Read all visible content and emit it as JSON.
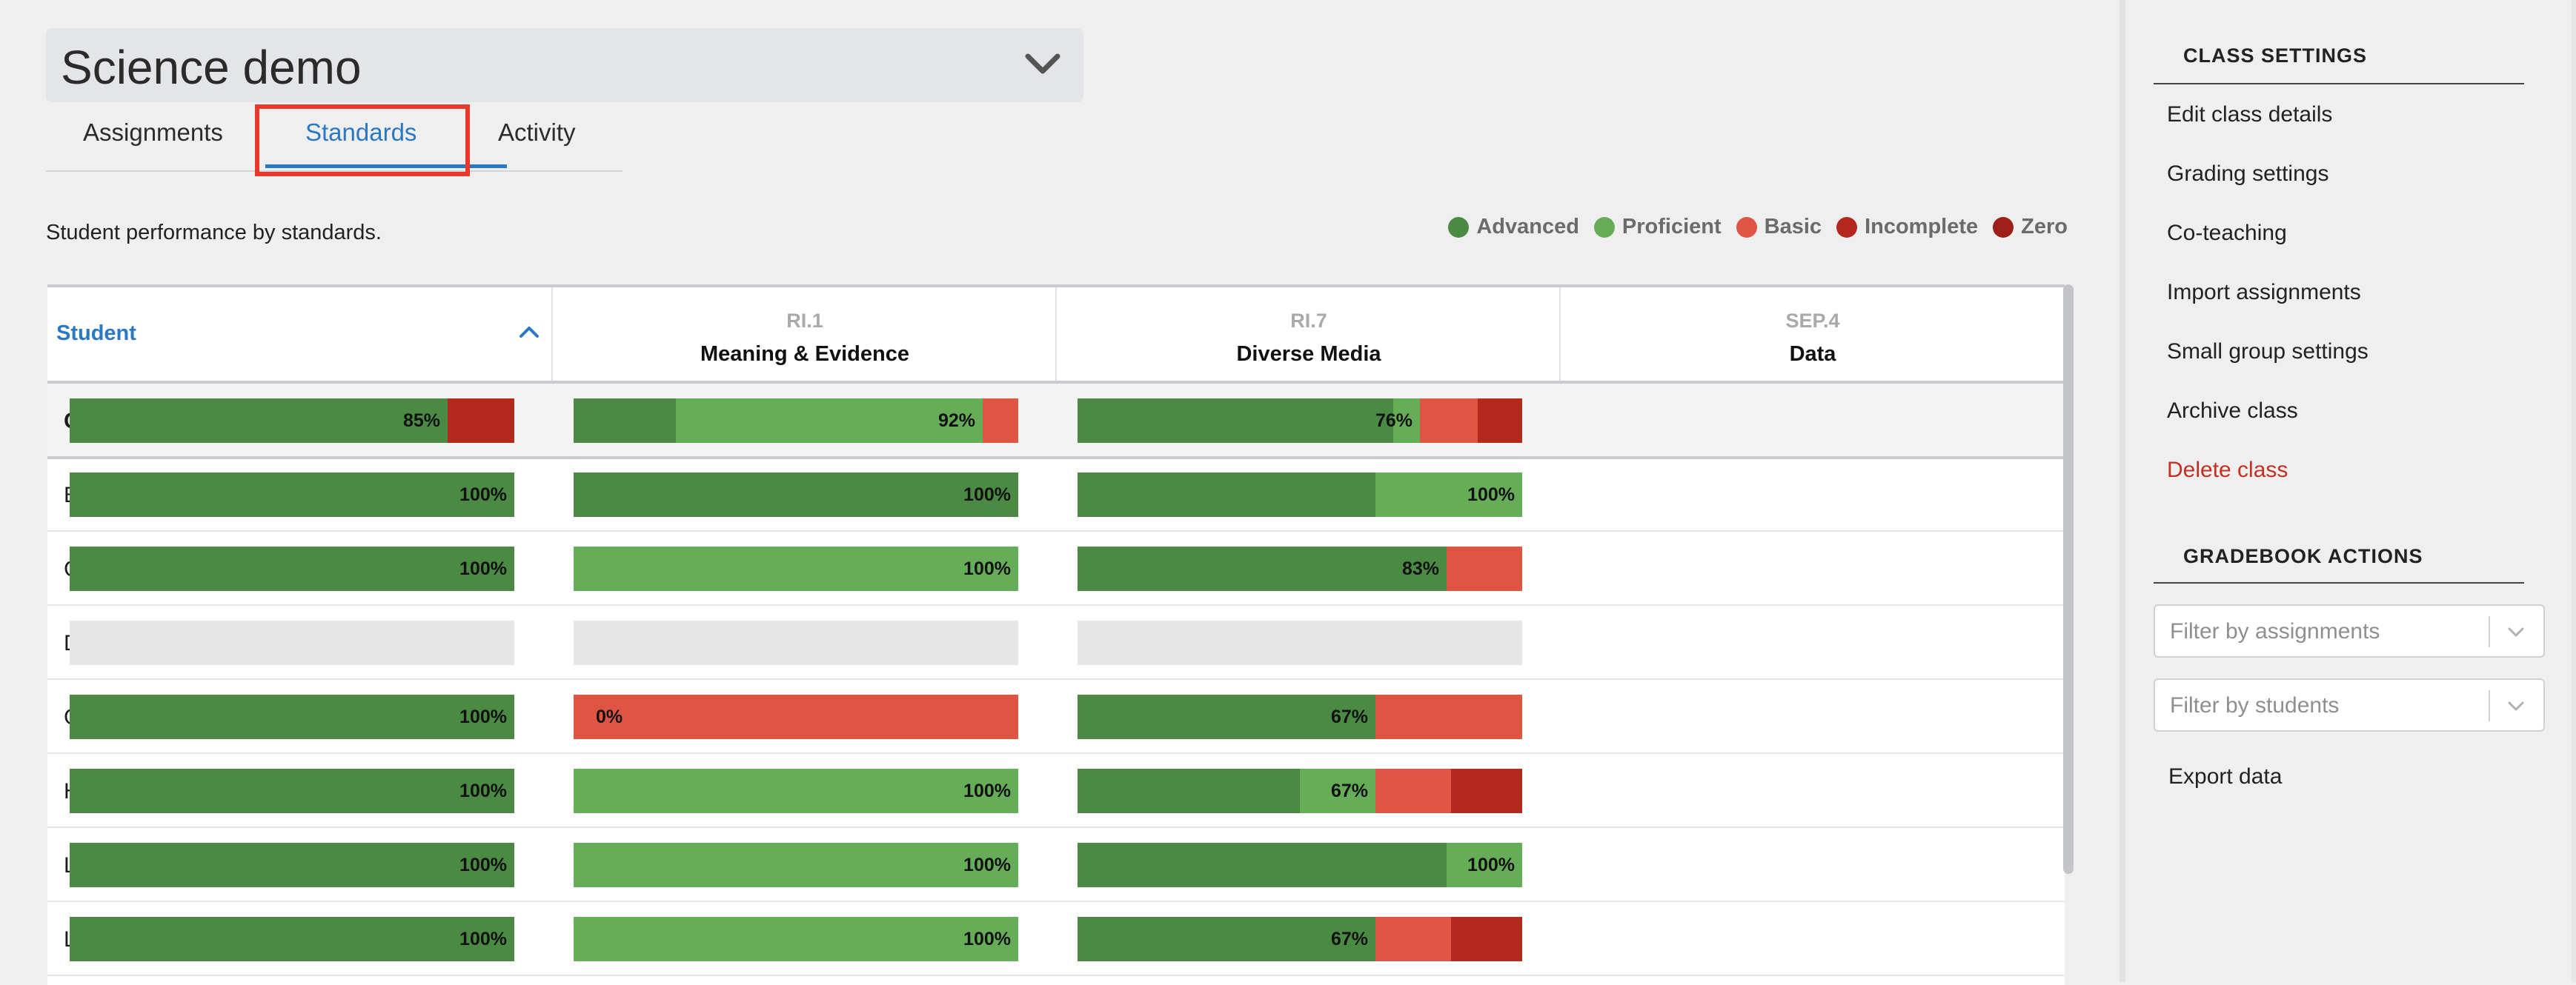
{
  "header": {
    "class_name": "Science demo"
  },
  "tabs": [
    {
      "label": "Assignments"
    },
    {
      "label": "Standards"
    },
    {
      "label": "Activity"
    }
  ],
  "subtitle": "Student performance by standards.",
  "legend": [
    {
      "label": "Advanced",
      "color": "#4b8a42"
    },
    {
      "label": "Proficient",
      "color": "#66ad57"
    },
    {
      "label": "Basic",
      "color": "#e05443"
    },
    {
      "label": "Incomplete",
      "color": "#b4281e"
    },
    {
      "label": "Zero",
      "color": "#9e1f18"
    }
  ],
  "table": {
    "student_header": "Student",
    "columns": [
      {
        "code": "RI.1",
        "name": "Meaning & Evidence"
      },
      {
        "code": "RI.7",
        "name": "Diverse Media"
      },
      {
        "code": "SEP.4",
        "name": "Data"
      }
    ],
    "class_average_label": "Class Average",
    "rows": [
      {
        "name": "Bills, Tyler"
      },
      {
        "name": "Curie, Marie"
      },
      {
        "name": "Demo, Rudy"
      },
      {
        "name": "Graham, Mary"
      },
      {
        "name": "Hare, Marlene"
      },
      {
        "name": "Lin, Sean"
      },
      {
        "name": "Lopez, Elena"
      }
    ],
    "cells": [
      [
        {
          "label": "85%",
          "segments": [
            {
              "level": "advanced",
              "fraction": 0.85
            },
            {
              "level": "incomplete",
              "fraction": 0.15
            }
          ]
        },
        {
          "label": "92%",
          "segments": [
            {
              "level": "advanced",
              "fraction": 0.23
            },
            {
              "level": "proficient",
              "fraction": 0.69
            },
            {
              "level": "basic",
              "fraction": 0.08
            }
          ]
        },
        {
          "label": "76%",
          "segments": [
            {
              "level": "advanced",
              "fraction": 0.71
            },
            {
              "level": "proficient",
              "fraction": 0.06
            },
            {
              "level": "basic",
              "fraction": 0.13
            },
            {
              "level": "incomplete",
              "fraction": 0.1
            }
          ]
        }
      ],
      [
        {
          "label": "100%",
          "segments": [
            {
              "level": "advanced",
              "fraction": 1.0
            }
          ]
        },
        {
          "label": "100%",
          "segments": [
            {
              "level": "advanced",
              "fraction": 1.0
            }
          ]
        },
        {
          "label": "100%",
          "segments": [
            {
              "level": "advanced",
              "fraction": 0.67
            },
            {
              "level": "proficient",
              "fraction": 0.33
            }
          ]
        }
      ],
      [
        {
          "label": "100%",
          "segments": [
            {
              "level": "advanced",
              "fraction": 1.0
            }
          ]
        },
        {
          "label": "100%",
          "segments": [
            {
              "level": "proficient",
              "fraction": 1.0
            }
          ]
        },
        {
          "label": "83%",
          "segments": [
            {
              "level": "advanced",
              "fraction": 0.83
            },
            {
              "level": "basic",
              "fraction": 0.17
            }
          ]
        }
      ],
      [
        {
          "label": "",
          "segments": []
        },
        {
          "label": "",
          "segments": []
        },
        {
          "label": "",
          "segments": []
        }
      ],
      [
        {
          "label": "100%",
          "segments": [
            {
              "level": "advanced",
              "fraction": 1.0
            }
          ]
        },
        {
          "label": "0%",
          "align": "left",
          "segments": [
            {
              "level": "basic",
              "fraction": 1.0
            }
          ]
        },
        {
          "label": "67%",
          "segments": [
            {
              "level": "advanced",
              "fraction": 0.67
            },
            {
              "level": "basic",
              "fraction": 0.33
            }
          ]
        }
      ],
      [
        {
          "label": "100%",
          "segments": [
            {
              "level": "advanced",
              "fraction": 1.0
            }
          ]
        },
        {
          "label": "100%",
          "segments": [
            {
              "level": "proficient",
              "fraction": 1.0
            }
          ]
        },
        {
          "label": "67%",
          "segments": [
            {
              "level": "advanced",
              "fraction": 0.5
            },
            {
              "level": "proficient",
              "fraction": 0.17
            },
            {
              "level": "basic",
              "fraction": 0.17
            },
            {
              "level": "incomplete",
              "fraction": 0.16
            }
          ]
        }
      ],
      [
        {
          "label": "100%",
          "segments": [
            {
              "level": "advanced",
              "fraction": 1.0
            }
          ]
        },
        {
          "label": "100%",
          "segments": [
            {
              "level": "proficient",
              "fraction": 1.0
            }
          ]
        },
        {
          "label": "100%",
          "segments": [
            {
              "level": "advanced",
              "fraction": 0.83
            },
            {
              "level": "proficient",
              "fraction": 0.17
            }
          ]
        }
      ],
      [
        {
          "label": "100%",
          "segments": [
            {
              "level": "advanced",
              "fraction": 1.0
            }
          ]
        },
        {
          "label": "100%",
          "segments": [
            {
              "level": "proficient",
              "fraction": 1.0
            }
          ]
        },
        {
          "label": "67%",
          "segments": [
            {
              "level": "advanced",
              "fraction": 0.67
            },
            {
              "level": "basic",
              "fraction": 0.17
            },
            {
              "level": "incomplete",
              "fraction": 0.16
            }
          ]
        }
      ]
    ]
  },
  "level_colors": {
    "advanced": "#4b8a42",
    "proficient": "#66ad57",
    "basic": "#e05443",
    "incomplete": "#b4281e",
    "zero": "#9e1f18"
  },
  "sidebar": {
    "class_settings_heading": "CLASS SETTINGS",
    "class_settings_links": [
      "Edit class details",
      "Grading settings",
      "Co-teaching",
      "Import assignments",
      "Small group settings",
      "Archive class",
      "Delete class"
    ],
    "gradebook_heading": "GRADEBOOK ACTIONS",
    "filter_assignments_placeholder": "Filter by assignments",
    "filter_students_placeholder": "Filter by students",
    "export_label": "Export data"
  }
}
